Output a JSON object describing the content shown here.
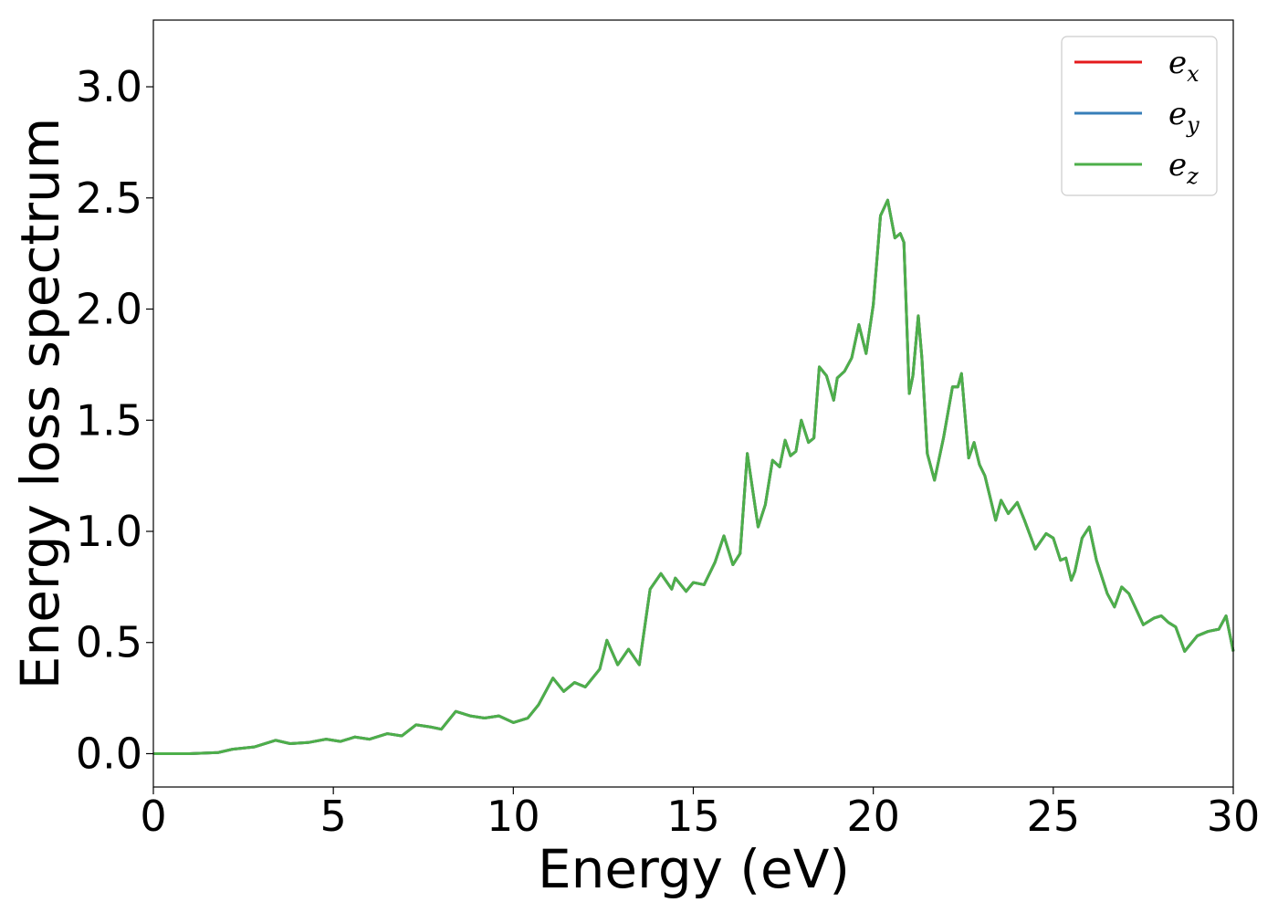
{
  "chart_data": {
    "type": "line",
    "title": "",
    "xlabel": "Energy (eV)",
    "ylabel": "Energy loss spectrum",
    "xlim": [
      0,
      30
    ],
    "ylim": [
      -0.15,
      3.3
    ],
    "xticks": [
      "0",
      "5",
      "10",
      "15",
      "20",
      "25",
      "30"
    ],
    "yticks": [
      "0.0",
      "0.5",
      "1.0",
      "1.5",
      "2.0",
      "2.5",
      "3.0"
    ],
    "grid": false,
    "legend_position": "top-right",
    "colors": {
      "e_x": "#e41a1c",
      "e_y": "#377eb8",
      "e_z": "#4daf4a"
    },
    "series": [
      {
        "name": "e_x",
        "label_base": "e",
        "label_sub": "x",
        "ref": "shared"
      },
      {
        "name": "e_y",
        "label_base": "e",
        "label_sub": "y",
        "ref": "shared"
      },
      {
        "name": "e_z",
        "label_base": "e",
        "label_sub": "z",
        "ref": "shared"
      }
    ],
    "shared_curve": {
      "x": [
        0,
        1,
        1.8,
        2.2,
        2.8,
        3.4,
        3.8,
        4.3,
        4.8,
        5.2,
        5.6,
        6.0,
        6.5,
        6.9,
        7.3,
        7.7,
        8.0,
        8.4,
        8.8,
        9.2,
        9.6,
        10.0,
        10.4,
        10.7,
        11.1,
        11.4,
        11.7,
        12.0,
        12.4,
        12.6,
        12.9,
        13.2,
        13.5,
        13.8,
        14.1,
        14.4,
        14.5,
        14.8,
        15.0,
        15.3,
        15.6,
        15.85,
        16.1,
        16.3,
        16.5,
        16.8,
        17.0,
        17.2,
        17.4,
        17.55,
        17.7,
        17.85,
        18.0,
        18.2,
        18.35,
        18.5,
        18.7,
        18.9,
        19.0,
        19.2,
        19.4,
        19.6,
        19.8,
        20.0,
        20.2,
        20.4,
        20.6,
        20.75,
        20.85,
        21.0,
        21.1,
        21.25,
        21.35,
        21.5,
        21.7,
        21.95,
        22.2,
        22.35,
        22.45,
        22.65,
        22.8,
        22.95,
        23.1,
        23.4,
        23.55,
        23.75,
        24.0,
        24.2,
        24.5,
        24.8,
        25.0,
        25.2,
        25.35,
        25.5,
        25.6,
        25.8,
        26.0,
        26.2,
        26.5,
        26.7,
        26.9,
        27.1,
        27.5,
        27.8,
        28.0,
        28.2,
        28.4,
        28.65,
        29.0,
        29.3,
        29.6,
        29.8,
        30.0
      ],
      "y": [
        0.0,
        0.0,
        0.005,
        0.02,
        0.03,
        0.06,
        0.045,
        0.05,
        0.065,
        0.055,
        0.075,
        0.065,
        0.09,
        0.08,
        0.13,
        0.12,
        0.11,
        0.19,
        0.17,
        0.16,
        0.17,
        0.14,
        0.16,
        0.22,
        0.34,
        0.28,
        0.32,
        0.3,
        0.38,
        0.51,
        0.4,
        0.47,
        0.4,
        0.74,
        0.81,
        0.74,
        0.79,
        0.73,
        0.77,
        0.76,
        0.86,
        0.98,
        0.85,
        0.9,
        1.35,
        1.02,
        1.12,
        1.32,
        1.29,
        1.41,
        1.34,
        1.36,
        1.5,
        1.4,
        1.42,
        1.74,
        1.7,
        1.59,
        1.69,
        1.72,
        1.78,
        1.93,
        1.8,
        2.02,
        2.42,
        2.49,
        2.32,
        2.34,
        2.3,
        1.62,
        1.7,
        1.97,
        1.78,
        1.35,
        1.23,
        1.42,
        1.65,
        1.65,
        1.71,
        1.33,
        1.4,
        1.3,
        1.25,
        1.05,
        1.14,
        1.08,
        1.13,
        1.05,
        0.92,
        0.99,
        0.97,
        0.87,
        0.88,
        0.78,
        0.82,
        0.97,
        1.02,
        0.87,
        0.72,
        0.66,
        0.75,
        0.72,
        0.58,
        0.61,
        0.62,
        0.59,
        0.57,
        0.46,
        0.53,
        0.55,
        0.56,
        0.62,
        0.46
      ]
    }
  }
}
